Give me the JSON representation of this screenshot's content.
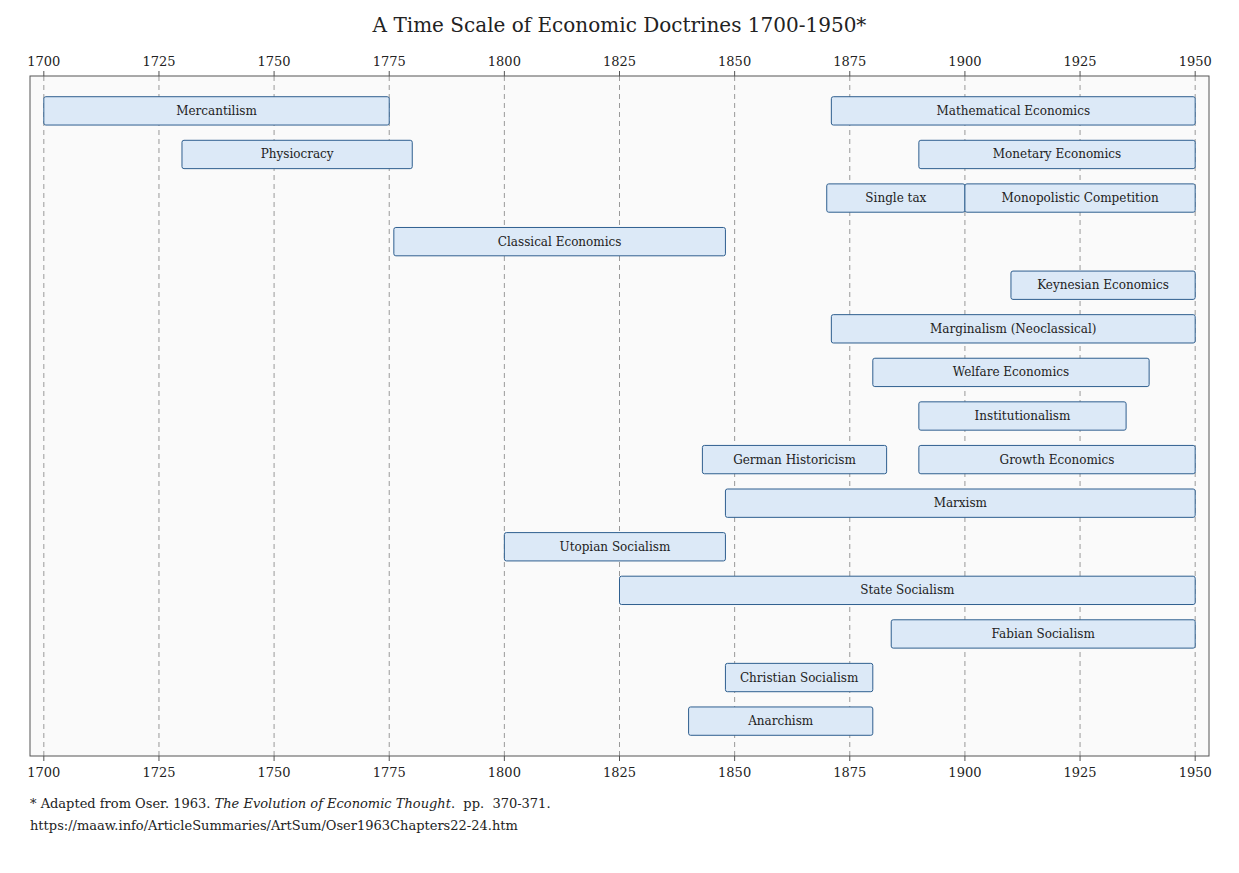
{
  "chart_data": {
    "type": "gantt",
    "title": "A Time Scale of Economic Doctrines 1700-1950*",
    "xlim": [
      1697,
      1953
    ],
    "xticks": [
      1700,
      1725,
      1750,
      1775,
      1800,
      1825,
      1850,
      1875,
      1900,
      1925,
      1950
    ],
    "ylim": [
      15.8,
      0.2
    ],
    "grid": true,
    "tick_labels": "x",
    "tasks": [
      {
        "label": "Mercantilism",
        "start": 1700,
        "end": 1775,
        "row": 1
      },
      {
        "label": "Mathematical Economics",
        "start": 1871,
        "end": 1950,
        "row": 1
      },
      {
        "label": "Physiocracy",
        "start": 1730,
        "end": 1780,
        "row": 2
      },
      {
        "label": "Monetary Economics",
        "start": 1890,
        "end": 1950,
        "row": 2
      },
      {
        "label": "Single tax",
        "start": 1870,
        "end": 1900,
        "row": 3
      },
      {
        "label": "Monopolistic Competition",
        "start": 1900,
        "end": 1950,
        "row": 3
      },
      {
        "label": "Classical Economics",
        "start": 1776,
        "end": 1848,
        "row": 4
      },
      {
        "label": "Keynesian Economics",
        "start": 1910,
        "end": 1950,
        "row": 5
      },
      {
        "label": "Marginalism (Neoclassical)",
        "start": 1871,
        "end": 1950,
        "row": 6
      },
      {
        "label": "Welfare Economics",
        "start": 1880,
        "end": 1940,
        "row": 7
      },
      {
        "label": "Institutionalism",
        "start": 1890,
        "end": 1935,
        "row": 8
      },
      {
        "label": "German Historicism",
        "start": 1843,
        "end": 1883,
        "row": 9
      },
      {
        "label": "Growth Economics",
        "start": 1890,
        "end": 1950,
        "row": 9
      },
      {
        "label": "Marxism",
        "start": 1848,
        "end": 1950,
        "row": 10
      },
      {
        "label": "Utopian Socialism",
        "start": 1800,
        "end": 1848,
        "row": 11
      },
      {
        "label": "State Socialism",
        "start": 1825,
        "end": 1950,
        "row": 12
      },
      {
        "label": "Fabian Socialism",
        "start": 1884,
        "end": 1950,
        "row": 13
      },
      {
        "label": "Christian Socialism",
        "start": 1848,
        "end": 1880,
        "row": 14
      },
      {
        "label": "Anarchism",
        "start": 1840,
        "end": 1880,
        "row": 15
      }
    ],
    "footnotes": [
      [
        "* Adapted from Oser. 1963. ",
        "The Evolution of Economic Thought",
        ".  pp.  370-371."
      ],
      [
        "https://maaw.info/ArticleSummaries/ArtSum/Oser1963Chapters22-24.htm"
      ]
    ]
  }
}
